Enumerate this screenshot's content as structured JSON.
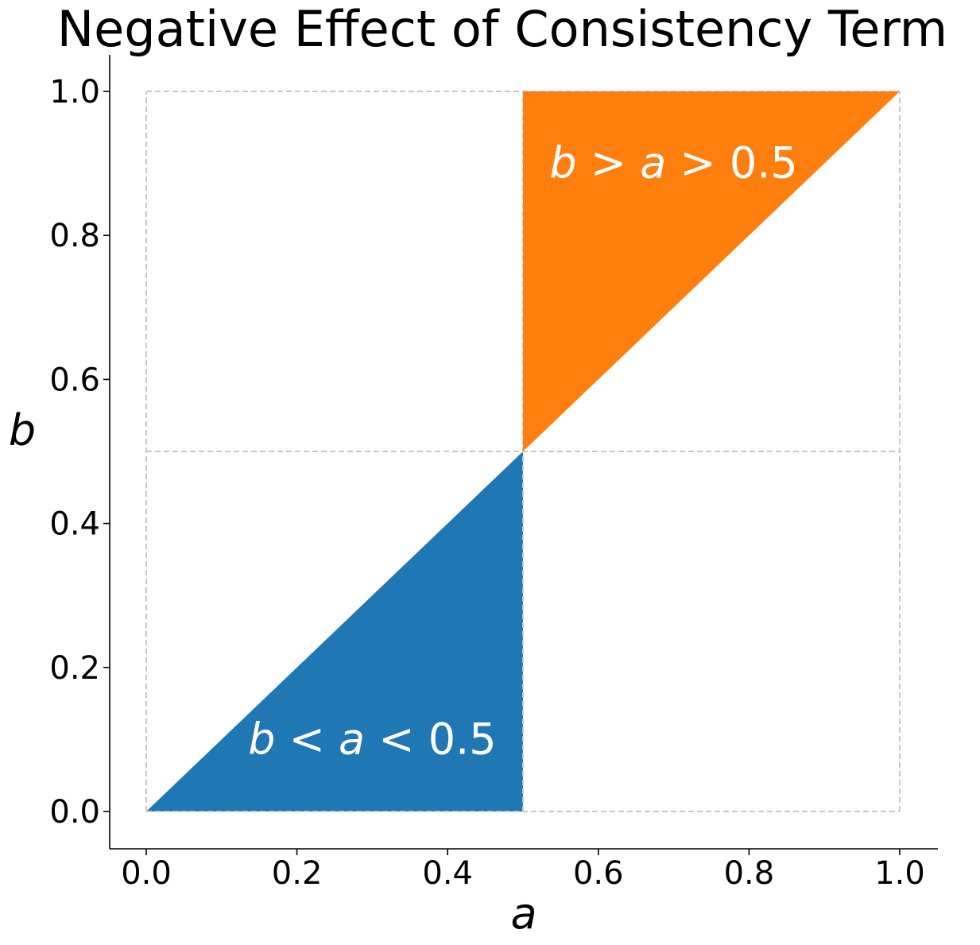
{
  "chart_data": {
    "type": "area",
    "title": "Negative Effect of Consistency Term",
    "xlabel": "a",
    "ylabel": "b",
    "xlim": [
      -0.05,
      1.05
    ],
    "ylim": [
      -0.05,
      1.05
    ],
    "xticks": [
      0.0,
      0.2,
      0.4,
      0.6,
      0.8,
      1.0
    ],
    "yticks": [
      0.0,
      0.2,
      0.4,
      0.6,
      0.8,
      1.0
    ],
    "xtick_labels": [
      "0.0",
      "0.2",
      "0.4",
      "0.6",
      "0.8",
      "1.0"
    ],
    "ytick_labels": [
      "0.0",
      "0.2",
      "0.4",
      "0.6",
      "0.8",
      "1.0"
    ],
    "grid": true,
    "grid_style": "dashed",
    "grid_lines": {
      "x": [
        0.0,
        0.5,
        1.0
      ],
      "y": [
        0.0,
        0.5,
        1.0
      ]
    },
    "regions": [
      {
        "polygon": [
          [
            0.0,
            0.0
          ],
          [
            0.5,
            0.5
          ],
          [
            0.5,
            0.0
          ]
        ],
        "color": "#1f77b4",
        "label": {
          "at": [
            0.3,
            0.1
          ],
          "parts": [
            {
              "text": "b",
              "italic": true
            },
            {
              "text": " < ",
              "italic": false
            },
            {
              "text": "a",
              "italic": true
            },
            {
              "text": " < 0.5",
              "italic": false
            }
          ]
        }
      },
      {
        "polygon": [
          [
            0.5,
            0.5
          ],
          [
            0.5,
            1.0
          ],
          [
            1.0,
            1.0
          ]
        ],
        "color": "#ff7f0e",
        "label": {
          "at": [
            0.7,
            0.9
          ],
          "parts": [
            {
              "text": "b",
              "italic": true
            },
            {
              "text": " > ",
              "italic": false
            },
            {
              "text": "a",
              "italic": true
            },
            {
              "text": " > 0.5",
              "italic": false
            }
          ]
        }
      }
    ]
  }
}
